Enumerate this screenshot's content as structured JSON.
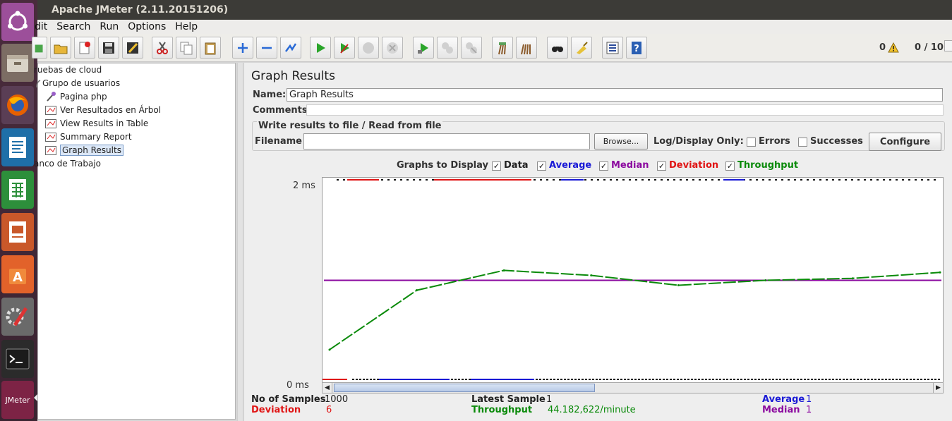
{
  "window": {
    "title": "Apache JMeter (2.11.20151206)"
  },
  "menu": [
    "Edit",
    "Search",
    "Run",
    "Options",
    "Help"
  ],
  "menu_visible": [
    "dit",
    "Search",
    "Run",
    "Options",
    "Help"
  ],
  "toolbar": {
    "warning_count": "0",
    "threads": "0 / 10"
  },
  "tree": {
    "items": [
      {
        "label": "ruebas de cloud",
        "icon": "test-plan-icon"
      },
      {
        "label": "Grupo de usuarios",
        "icon": "thread-group-icon"
      },
      {
        "label": "Pagina php",
        "icon": "http-sampler-icon"
      },
      {
        "label": "Ver Resultados en Árbol",
        "icon": "listener-icon"
      },
      {
        "label": "View Results in Table",
        "icon": "listener-icon"
      },
      {
        "label": "Summary Report",
        "icon": "listener-icon"
      },
      {
        "label": "Graph Results",
        "icon": "listener-icon",
        "selected": true
      },
      {
        "label": "anco de Trabajo",
        "icon": "workbench-icon"
      }
    ]
  },
  "panel": {
    "title": "Graph Results",
    "name_label": "Name:",
    "name_value": "Graph Results",
    "comments_label": "Comments:",
    "comments_value": "",
    "file_section_title": "Write results to file / Read from file",
    "filename_label": "Filename",
    "filename_value": "",
    "browse_label": "Browse...",
    "log_display_label": "Log/Display Only:",
    "errors_label": "Errors",
    "successes_label": "Successes",
    "configure_label": "Configure",
    "graphs_to_display_label": "Graphs to Display",
    "graph_options": [
      {
        "label": "Data",
        "checked": true,
        "color": "#111111"
      },
      {
        "label": "Average",
        "checked": true,
        "color": "#1a1ad6"
      },
      {
        "label": "Median",
        "checked": true,
        "color": "#8b0a9f"
      },
      {
        "label": "Deviation",
        "checked": true,
        "color": "#e01515"
      },
      {
        "label": "Throughput",
        "checked": true,
        "color": "#0a8a0a"
      }
    ],
    "y_max_label": "2 ms",
    "y_min_label": "0 ms"
  },
  "stats": {
    "samples_label": "No of Samples",
    "samples_value": "1000",
    "deviation_label": "Deviation",
    "deviation_value": "6",
    "latest_label": "Latest Sample",
    "latest_value": "1",
    "throughput_label": "Throughput",
    "throughput_value": "44.182,622/minute",
    "average_label": "Average",
    "average_value": "1",
    "median_label": "Median",
    "median_value": "1"
  },
  "colors": {
    "data": "#111111",
    "average": "#1a1ad6",
    "median": "#8b0a9f",
    "deviation": "#e01515",
    "throughput": "#0a8a0a"
  },
  "chart_data": {
    "type": "line",
    "title": "",
    "xlabel": "",
    "ylabel": "",
    "ylim": [
      0,
      2
    ],
    "series": [
      {
        "name": "Median",
        "values": [
          1
        ]
      },
      {
        "name": "Throughput",
        "values": [
          0.3,
          0.9,
          1.1,
          1.05,
          0.95,
          1.0,
          1.02,
          1.08
        ]
      }
    ]
  }
}
